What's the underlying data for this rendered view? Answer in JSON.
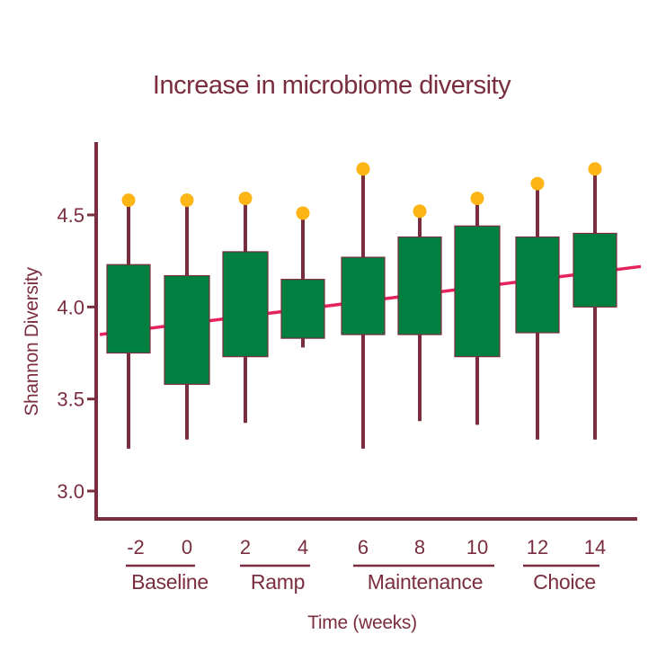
{
  "chart_data": {
    "type": "box",
    "title": "Increase in microbiome diversity",
    "xlabel": "Time (weeks)",
    "ylabel": "Shannon Diversity",
    "ylim": [
      2.85,
      4.87
    ],
    "yticks": [
      "3.0",
      "3.5",
      "4.0",
      "4.5"
    ],
    "ytick_values": [
      3.0,
      3.5,
      4.0,
      4.5
    ],
    "categories": [
      "-2",
      "0",
      "2",
      "4",
      "6",
      "8",
      "10",
      "12",
      "14"
    ],
    "boxes": [
      {
        "week": "-2",
        "whisker_low": 3.23,
        "q1": 3.75,
        "q3": 4.23,
        "whisker_high": 4.55,
        "outlier": 4.58
      },
      {
        "week": "0",
        "whisker_low": 3.28,
        "q1": 3.58,
        "q3": 4.17,
        "whisker_high": 4.55,
        "outlier": 4.58
      },
      {
        "week": "2",
        "whisker_low": 3.37,
        "q1": 3.73,
        "q3": 4.3,
        "whisker_high": 4.56,
        "outlier": 4.59
      },
      {
        "week": "4",
        "whisker_low": 3.78,
        "q1": 3.83,
        "q3": 4.15,
        "whisker_high": 4.48,
        "outlier": 4.51
      },
      {
        "week": "6",
        "whisker_low": 3.23,
        "q1": 3.85,
        "q3": 4.27,
        "whisker_high": 4.72,
        "outlier": 4.75
      },
      {
        "week": "8",
        "whisker_low": 3.38,
        "q1": 3.85,
        "q3": 4.38,
        "whisker_high": 4.5,
        "outlier": 4.52
      },
      {
        "week": "10",
        "whisker_low": 3.36,
        "q1": 3.73,
        "q3": 4.44,
        "whisker_high": 4.56,
        "outlier": 4.59
      },
      {
        "week": "12",
        "whisker_low": 3.28,
        "q1": 3.86,
        "q3": 4.38,
        "whisker_high": 4.64,
        "outlier": 4.67
      },
      {
        "week": "14",
        "whisker_low": 3.28,
        "q1": 4.0,
        "q3": 4.4,
        "whisker_high": 4.72,
        "outlier": 4.75
      }
    ],
    "trend_line": {
      "start": 3.85,
      "end": 4.22
    },
    "groups": [
      {
        "label": "Baseline",
        "weeks": [
          "-2",
          "0"
        ]
      },
      {
        "label": "Ramp",
        "weeks": [
          "2",
          "4"
        ]
      },
      {
        "label": "Maintenance",
        "weeks": [
          "6",
          "8",
          "10"
        ]
      },
      {
        "label": "Choice",
        "weeks": [
          "12",
          "14"
        ]
      }
    ],
    "colors": {
      "text": "#7a2d3e",
      "axis": "#7a2d3e",
      "box": "#008040",
      "whisker": "#7a2d3e",
      "outlier": "#fdb515",
      "trend": "#e5225c"
    }
  }
}
